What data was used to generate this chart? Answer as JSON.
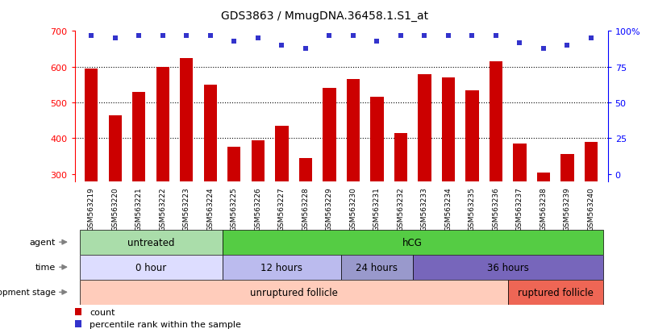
{
  "title": "GDS3863 / MmugDNA.36458.1.S1_at",
  "samples": [
    "GSM563219",
    "GSM563220",
    "GSM563221",
    "GSM563222",
    "GSM563223",
    "GSM563224",
    "GSM563225",
    "GSM563226",
    "GSM563227",
    "GSM563228",
    "GSM563229",
    "GSM563230",
    "GSM563231",
    "GSM563232",
    "GSM563233",
    "GSM563234",
    "GSM563235",
    "GSM563236",
    "GSM563237",
    "GSM563238",
    "GSM563239",
    "GSM563240"
  ],
  "bar_values": [
    595,
    465,
    530,
    600,
    625,
    550,
    375,
    395,
    435,
    345,
    540,
    565,
    515,
    415,
    580,
    570,
    535,
    615,
    385,
    305,
    355,
    390
  ],
  "percentile_values": [
    97,
    95,
    97,
    97,
    97,
    97,
    93,
    95,
    90,
    88,
    97,
    97,
    93,
    97,
    97,
    97,
    97,
    97,
    92,
    88,
    90,
    95
  ],
  "bar_color": "#cc0000",
  "percentile_color": "#3333cc",
  "ymin": 280,
  "ymax": 700,
  "y_ticks_left": [
    300,
    400,
    500,
    600,
    700
  ],
  "y_right_tick_positions": [
    300,
    400,
    500,
    600,
    700
  ],
  "y_right_labels": [
    "0",
    "25",
    "50",
    "75",
    "100%"
  ],
  "agent_segments": [
    {
      "text": "untreated",
      "start": 0,
      "end": 5,
      "color": "#aaddaa"
    },
    {
      "text": "hCG",
      "start": 6,
      "end": 21,
      "color": "#55cc44"
    }
  ],
  "time_segments": [
    {
      "text": "0 hour",
      "start": 0,
      "end": 5,
      "color": "#ddddff"
    },
    {
      "text": "12 hours",
      "start": 6,
      "end": 10,
      "color": "#bbbbee"
    },
    {
      "text": "24 hours",
      "start": 11,
      "end": 13,
      "color": "#9999cc"
    },
    {
      "text": "36 hours",
      "start": 14,
      "end": 21,
      "color": "#7766bb"
    }
  ],
  "dev_segments": [
    {
      "text": "unruptured follicle",
      "start": 0,
      "end": 17,
      "color": "#ffccbb"
    },
    {
      "text": "ruptured follicle",
      "start": 18,
      "end": 21,
      "color": "#ee6655"
    }
  ],
  "legend_items": [
    {
      "color": "#cc0000",
      "label": "count"
    },
    {
      "color": "#3333cc",
      "label": "percentile rank within the sample"
    }
  ]
}
